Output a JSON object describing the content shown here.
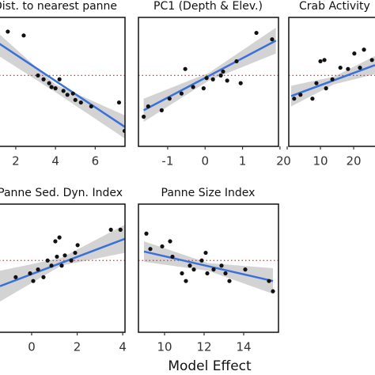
{
  "x_label": "Model Effect",
  "chart_data": [
    {
      "type": "scatter",
      "title": "Dist. to nearest panne",
      "x": [
        1.6,
        2.4,
        3.12,
        3.4,
        3.68,
        3.8,
        4.0,
        4.2,
        4.4,
        4.6,
        4.88,
        5.0,
        5.28,
        5.8,
        7.2,
        7.48
      ],
      "values": [
        0.89,
        0.86,
        0.55,
        0.52,
        0.49,
        0.46,
        0.45,
        0.52,
        0.43,
        0.4,
        0.41,
        0.36,
        0.34,
        0.31,
        0.34,
        0.12
      ],
      "xlim": [
        0.45,
        7.5
      ],
      "xticks": [
        2,
        4,
        6
      ],
      "ylim": [
        0,
        1
      ],
      "fit": {
        "x": [
          0.45,
          7.5
        ],
        "y": [
          0.87,
          0.15
        ]
      },
      "band": {
        "x": [
          0.45,
          4.0,
          7.5
        ],
        "lower": [
          0.77,
          0.42,
          0.06
        ],
        "upper": [
          0.97,
          0.48,
          0.24
        ]
      },
      "reference": 0.55,
      "color": "#111111",
      "line_color": "#3b6fd9"
    },
    {
      "type": "scatter",
      "title": "PC1 (Depth & Elev.)",
      "x": [
        -1.64,
        -1.52,
        -1.16,
        -0.95,
        -0.63,
        -0.53,
        -0.32,
        -0.04,
        0.04,
        0.21,
        0.42,
        0.48,
        0.59,
        0.84,
        0.95,
        1.37,
        1.79
      ],
      "values": [
        0.23,
        0.31,
        0.28,
        0.37,
        0.41,
        0.6,
        0.46,
        0.45,
        0.53,
        0.52,
        0.55,
        0.58,
        0.51,
        0.66,
        0.49,
        0.88,
        0.83
      ],
      "xlim": [
        -1.78,
        1.96
      ],
      "xticks": [
        -1,
        0,
        1,
        2
      ],
      "ylim": [
        0,
        1
      ],
      "fit": {
        "x": [
          -1.64,
          1.89
        ],
        "y": [
          0.28,
          0.82
        ]
      },
      "band": {
        "x": [
          -1.64,
          0.1,
          1.89
        ],
        "lower": [
          0.19,
          0.51,
          0.72
        ],
        "upper": [
          0.37,
          0.57,
          0.92
        ]
      },
      "reference": 0.55,
      "color": "#111111",
      "line_color": "#3b6fd9"
    },
    {
      "type": "scatter",
      "title": "Crab Activity",
      "x": [
        2.1,
        4.0,
        7.6,
        8.8,
        10,
        11.2,
        11.7,
        13.6,
        16,
        18.3,
        20.2,
        21.9,
        23.1,
        25.5
      ],
      "values": [
        0.37,
        0.4,
        0.37,
        0.49,
        0.66,
        0.67,
        0.45,
        0.52,
        0.61,
        0.6,
        0.72,
        0.61,
        0.75,
        0.67
      ],
      "xlim": [
        0.48,
        42.6
      ],
      "xticks": [
        0,
        10,
        20
      ],
      "ylim": [
        0,
        1
      ],
      "fit": {
        "x": [
          1.2,
          26.4
        ],
        "y": [
          0.39,
          0.63
        ]
      },
      "band": {
        "x": [
          1.2,
          14,
          26.4
        ],
        "lower": [
          0.31,
          0.48,
          0.56
        ],
        "upper": [
          0.47,
          0.54,
          0.7
        ]
      },
      "reference": 0.55,
      "color": "#111111",
      "line_color": "#3b6fd9"
    },
    {
      "type": "scatter",
      "title": "Panne Sed. Dyn. Index",
      "x": [
        -0.7,
        -0.07,
        0.07,
        0.28,
        0.52,
        0.7,
        0.87,
        1.04,
        1.11,
        1.22,
        1.32,
        1.46,
        1.74,
        1.91,
        2.02,
        3.48,
        3.9
      ],
      "values": [
        0.43,
        0.46,
        0.4,
        0.49,
        0.43,
        0.56,
        0.52,
        0.71,
        0.59,
        0.74,
        0.52,
        0.6,
        0.56,
        0.62,
        0.68,
        0.8,
        0.8
      ],
      "xlim": [
        -2.05,
        4.1
      ],
      "xticks": [
        0,
        2,
        4
      ],
      "ylim": [
        0,
        1
      ],
      "fit": {
        "x": [
          -1.39,
          4.1
        ],
        "y": [
          0.36,
          0.73
        ]
      },
      "band": {
        "x": [
          -1.39,
          1.3,
          4.1
        ],
        "lower": [
          0.24,
          0.52,
          0.62
        ],
        "upper": [
          0.48,
          0.58,
          0.84
        ]
      },
      "reference": 0.56,
      "color": "#111111",
      "line_color": "#3b6fd9"
    },
    {
      "type": "scatter",
      "title": "Panne Size Index",
      "x": [
        9.08,
        9.28,
        9.88,
        10.28,
        10.4,
        10.88,
        11.08,
        11.28,
        11.48,
        11.88,
        12.08,
        12.16,
        12.48,
        12.88,
        13.08,
        13.28,
        14.08,
        15.28,
        15.48
      ],
      "values": [
        0.77,
        0.65,
        0.67,
        0.71,
        0.59,
        0.46,
        0.4,
        0.52,
        0.49,
        0.56,
        0.62,
        0.46,
        0.49,
        0.52,
        0.46,
        0.4,
        0.49,
        0.4,
        0.32
      ],
      "xlim": [
        8.68,
        15.76
      ],
      "xticks": [
        10,
        12,
        14
      ],
      "ylim": [
        0,
        1
      ],
      "fit": {
        "x": [
          8.96,
          15.48
        ],
        "y": [
          0.63,
          0.4
        ]
      },
      "band": {
        "x": [
          8.96,
          12.2,
          15.48
        ],
        "lower": [
          0.55,
          0.48,
          0.3
        ],
        "upper": [
          0.71,
          0.54,
          0.5
        ]
      },
      "reference": 0.56,
      "color": "#111111",
      "line_color": "#3b6fd9"
    }
  ]
}
